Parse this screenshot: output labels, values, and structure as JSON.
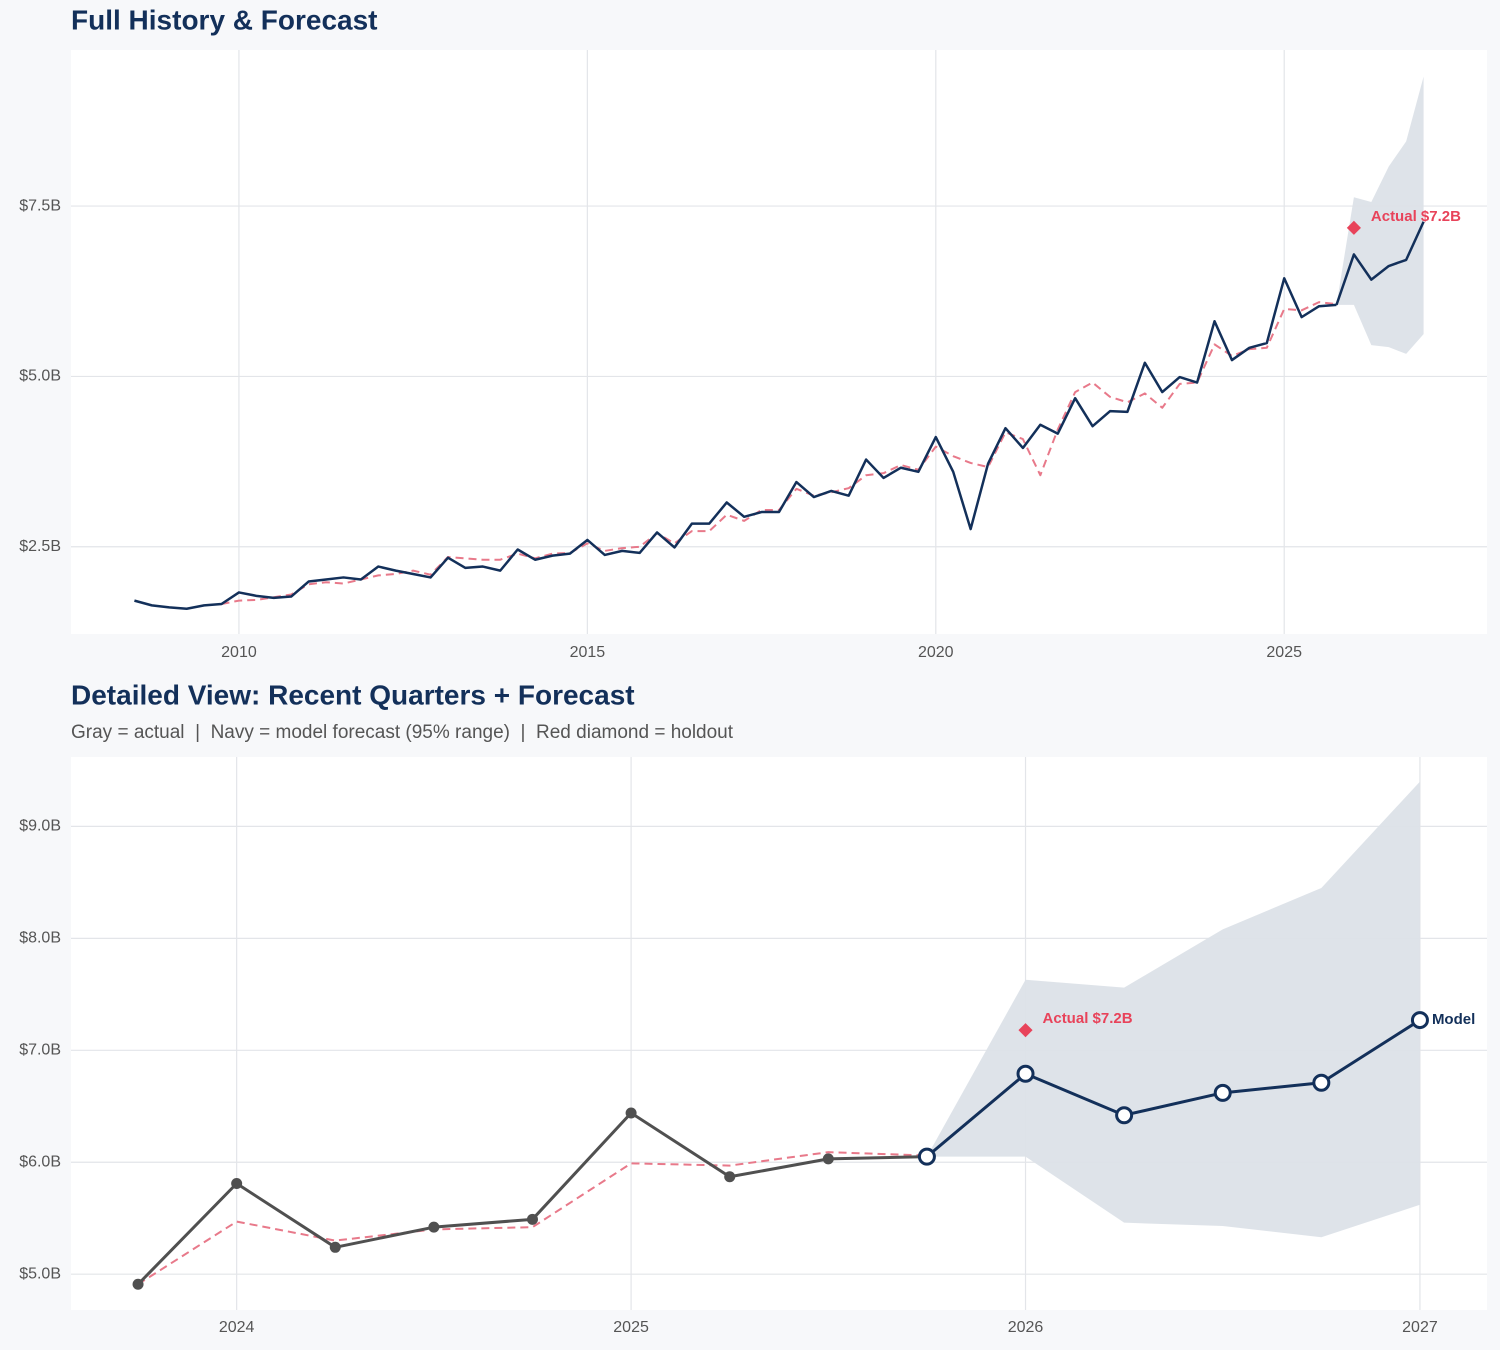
{
  "chart_data": [
    {
      "type": "line",
      "title": "Full History & Forecast",
      "xlim": [
        2007.59,
        2027.91
      ],
      "xticks": [
        2010,
        2015,
        2020,
        2025
      ],
      "ylim": [
        1.22,
        9.79
      ],
      "yticks": [
        {
          "value": 2.5,
          "label": "$2.5B"
        },
        {
          "value": 5.0,
          "label": "$5.0B"
        },
        {
          "value": 7.5,
          "label": "$7.5B"
        }
      ],
      "grid": true,
      "band": {
        "color": "#dce1e8",
        "x": [
          2025.75,
          2026,
          2026.25,
          2026.5,
          2026.75,
          2027
        ],
        "lower": [
          6.05,
          6.05,
          5.46,
          5.43,
          5.33,
          5.62
        ],
        "upper": [
          6.05,
          7.63,
          7.56,
          8.08,
          8.45,
          9.4
        ]
      },
      "series": [
        {
          "color": "#e8798a",
          "style": "dashed",
          "x": [
            2009.75,
            2010,
            2010.25,
            2010.5,
            2010.75,
            2011,
            2011.25,
            2011.5,
            2011.75,
            2012,
            2012.25,
            2012.5,
            2012.75,
            2013,
            2013.25,
            2013.5,
            2013.75,
            2014,
            2014.25,
            2014.5,
            2014.75,
            2015,
            2015.25,
            2015.5,
            2015.75,
            2016,
            2016.25,
            2016.5,
            2016.75,
            2017,
            2017.25,
            2017.5,
            2017.75,
            2018,
            2018.25,
            2018.5,
            2018.75,
            2019,
            2019.25,
            2019.5,
            2019.75,
            2020,
            2020.25,
            2020.5,
            2020.75,
            2021,
            2021.25,
            2021.5,
            2021.75,
            2022,
            2022.25,
            2022.5,
            2022.75,
            2023,
            2023.25,
            2023.5,
            2023.75,
            2024,
            2024.25,
            2024.5,
            2024.75,
            2025,
            2025.25,
            2025.5,
            2025.75
          ],
          "values": [
            1.66,
            1.71,
            1.72,
            1.76,
            1.8,
            1.95,
            1.98,
            1.96,
            2.02,
            2.08,
            2.1,
            2.15,
            2.09,
            2.35,
            2.33,
            2.31,
            2.31,
            2.4,
            2.33,
            2.4,
            2.41,
            2.55,
            2.44,
            2.48,
            2.5,
            2.7,
            2.55,
            2.73,
            2.73,
            2.97,
            2.88,
            3.04,
            3.04,
            3.35,
            3.25,
            3.3,
            3.36,
            3.55,
            3.58,
            3.7,
            3.63,
            3.97,
            3.83,
            3.73,
            3.67,
            4.18,
            4.08,
            3.55,
            4.22,
            4.77,
            4.91,
            4.7,
            4.62,
            4.75,
            4.54,
            4.89,
            4.91,
            5.47,
            5.3,
            5.4,
            5.42,
            5.99,
            5.97,
            6.09,
            6.06
          ]
        },
        {
          "color": "#13305a",
          "style": "solid",
          "x": [
            2008.5,
            2008.75,
            2009,
            2009.25,
            2009.5,
            2009.75,
            2010,
            2010.25,
            2010.5,
            2010.75,
            2011,
            2011.25,
            2011.5,
            2011.75,
            2012,
            2012.25,
            2012.5,
            2012.75,
            2013,
            2013.25,
            2013.5,
            2013.75,
            2014,
            2014.25,
            2014.5,
            2014.75,
            2015,
            2015.25,
            2015.5,
            2015.75,
            2016,
            2016.25,
            2016.5,
            2016.75,
            2017,
            2017.25,
            2017.5,
            2017.75,
            2018,
            2018.25,
            2018.5,
            2018.75,
            2019,
            2019.25,
            2019.5,
            2019.75,
            2020,
            2020.25,
            2020.5,
            2020.75,
            2021,
            2021.25,
            2021.5,
            2021.75,
            2022,
            2022.25,
            2022.5,
            2022.75,
            2023,
            2023.25,
            2023.5,
            2023.75,
            2024,
            2024.25,
            2024.5,
            2024.75,
            2025,
            2025.25,
            2025.5,
            2025.75
          ],
          "values": [
            1.71,
            1.64,
            1.61,
            1.59,
            1.64,
            1.66,
            1.83,
            1.78,
            1.75,
            1.77,
            1.99,
            2.02,
            2.05,
            2.02,
            2.21,
            2.15,
            2.1,
            2.05,
            2.34,
            2.19,
            2.21,
            2.15,
            2.46,
            2.31,
            2.37,
            2.4,
            2.6,
            2.38,
            2.44,
            2.41,
            2.71,
            2.49,
            2.84,
            2.84,
            3.15,
            2.94,
            3.01,
            3.01,
            3.45,
            3.23,
            3.32,
            3.25,
            3.78,
            3.51,
            3.66,
            3.6,
            4.11,
            3.6,
            2.76,
            3.72,
            4.24,
            3.95,
            4.29,
            4.16,
            4.68,
            4.27,
            4.49,
            4.48,
            5.2,
            4.77,
            4.99,
            4.91,
            5.81,
            5.24,
            5.42,
            5.49,
            6.44,
            5.87,
            6.03,
            6.05
          ]
        },
        {
          "color": "#13305a",
          "style": "solid",
          "x": [
            2025.75,
            2026,
            2026.25,
            2026.5,
            2026.75,
            2027
          ],
          "values": [
            6.05,
            6.79,
            6.42,
            6.62,
            6.71,
            7.27
          ]
        }
      ],
      "holdout": {
        "color": "#e8435a",
        "x": [
          2026
        ],
        "values": [
          7.18
        ],
        "value_labels": [
          "Actual $7.2B"
        ]
      }
    },
    {
      "type": "line",
      "title": "Detailed View: Recent Quarters + Forecast",
      "subtitle": "Gray = actual  |  Navy = model forecast (95% range)  |  Red diamond = holdout",
      "xlim": [
        2023.58,
        2027.17
      ],
      "xticks": [
        2024,
        2025,
        2026,
        2027
      ],
      "ylim": [
        4.68,
        9.62
      ],
      "yticks": [
        {
          "value": 5.0,
          "label": "$5.0B"
        },
        {
          "value": 6.0,
          "label": "$6.0B"
        },
        {
          "value": 7.0,
          "label": "$7.0B"
        },
        {
          "value": 8.0,
          "label": "$8.0B"
        },
        {
          "value": 9.0,
          "label": "$9.0B"
        }
      ],
      "grid": true,
      "band": {
        "color": "#dce1e8",
        "x": [
          2025.75,
          2026,
          2026.25,
          2026.5,
          2026.75,
          2027
        ],
        "lower": [
          6.05,
          6.05,
          5.46,
          5.43,
          5.33,
          5.62
        ],
        "upper": [
          6.05,
          7.63,
          7.56,
          8.08,
          8.45,
          9.4
        ]
      },
      "series": [
        {
          "color": "#e8798a",
          "style": "dashed",
          "x": [
            2023.75,
            2024,
            2024.25,
            2024.5,
            2024.75,
            2025,
            2025.25,
            2025.5,
            2025.75
          ],
          "values": [
            4.91,
            5.47,
            5.3,
            5.4,
            5.42,
            5.99,
            5.97,
            6.09,
            6.06
          ]
        },
        {
          "color": "#505050",
          "style": "solid",
          "markers": "filled",
          "x": [
            2023.75,
            2024,
            2024.25,
            2024.5,
            2024.75,
            2025,
            2025.25,
            2025.5,
            2025.75
          ],
          "values": [
            4.91,
            5.81,
            5.24,
            5.42,
            5.49,
            6.44,
            5.87,
            6.03,
            6.05
          ]
        },
        {
          "color": "#13305a",
          "style": "solid",
          "markers": "open",
          "x": [
            2025.75,
            2026,
            2026.25,
            2026.5,
            2026.75,
            2027
          ],
          "values": [
            6.05,
            6.79,
            6.42,
            6.62,
            6.71,
            7.27
          ],
          "annotation": "Model"
        }
      ],
      "holdout": {
        "color": "#e8435a",
        "x": [
          2026
        ],
        "values": [
          7.18
        ],
        "value_labels": [
          "Actual $7.2B"
        ]
      }
    }
  ]
}
